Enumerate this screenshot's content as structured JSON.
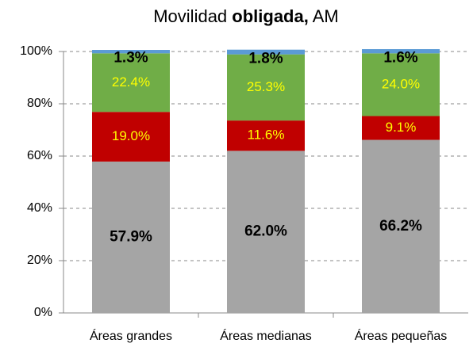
{
  "chart_data": {
    "type": "stacked_bar",
    "title_segments": [
      {
        "text": "Movilidad ",
        "bold": false
      },
      {
        "text": "obligada,",
        "bold": true
      },
      {
        "text": " AM",
        "bold": false
      }
    ],
    "categories": [
      "Áreas grandes",
      "Áreas medianas",
      "Áreas pequeñas"
    ],
    "series": [
      {
        "color": "#a5a5a5",
        "label_color": "#000000",
        "label_bold": true,
        "values": [
          57.9,
          62.0,
          66.2
        ],
        "value_labels": [
          "57.9%",
          "62.0%",
          "66.2%"
        ]
      },
      {
        "color": "#c00000",
        "label_color": "#ffff00",
        "label_bold": false,
        "values": [
          19.0,
          11.6,
          9.1
        ],
        "value_labels": [
          "19.0%",
          "11.6%",
          "9.1%"
        ]
      },
      {
        "color": "#70ad47",
        "label_color": "#ffff00",
        "label_bold": false,
        "values": [
          22.4,
          25.3,
          24.0
        ],
        "value_labels": [
          "22.4%",
          "25.3%",
          "24.0%"
        ]
      },
      {
        "color": "#5b9bd5",
        "label_color": "#000000",
        "label_bold": true,
        "values": [
          1.3,
          1.8,
          1.6
        ],
        "value_labels": [
          "1.3%",
          "1.8%",
          "1.6%"
        ]
      }
    ],
    "ylim": [
      0,
      100
    ],
    "yticks": [
      {
        "value": 0,
        "label": "0%"
      },
      {
        "value": 20,
        "label": "20%"
      },
      {
        "value": 40,
        "label": "40%"
      },
      {
        "value": 60,
        "label": "60%"
      },
      {
        "value": 80,
        "label": "80%"
      },
      {
        "value": 100,
        "label": "100%"
      }
    ],
    "grid": true
  }
}
